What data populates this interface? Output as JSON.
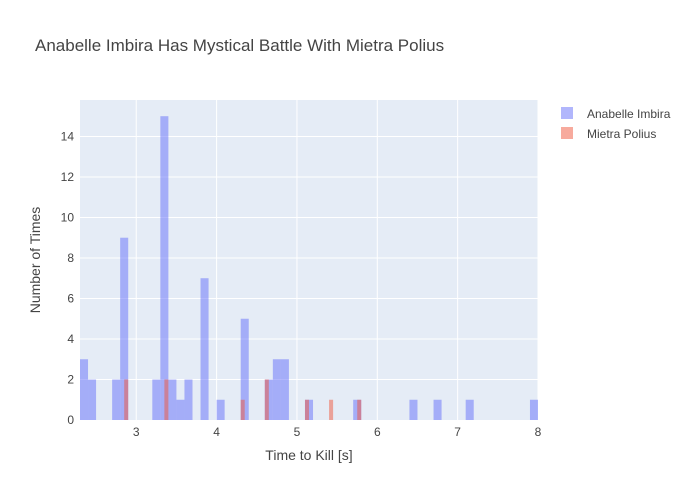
{
  "colors": {
    "plot_bg": "#e5ecf6",
    "grid": "#ffffff",
    "series_1": "#636efa",
    "series_2": "#ef553b"
  },
  "chart_data": {
    "type": "bar",
    "chart_kind": "overlaid-histogram",
    "title": "Anabelle Imbira Has Mystical Battle With Mietra Polius",
    "xlabel": "Time to Kill [s]",
    "ylabel": "Number of Times",
    "xlim": [
      2.3,
      8.0
    ],
    "ylim": [
      0,
      15.8
    ],
    "x_ticks": [
      3,
      4,
      5,
      6,
      7,
      8
    ],
    "y_ticks": [
      0,
      2,
      4,
      6,
      8,
      10,
      12,
      14
    ],
    "bin_width": 0.1,
    "grid": true,
    "legend_position": "top-right",
    "opacity": 0.5,
    "series": [
      {
        "name": "Anabelle Imbira",
        "color": "#636efa",
        "bins": [
          {
            "x": 2.35,
            "y": 3
          },
          {
            "x": 2.45,
            "y": 2
          },
          {
            "x": 2.75,
            "y": 2
          },
          {
            "x": 2.85,
            "y": 9
          },
          {
            "x": 3.25,
            "y": 2
          },
          {
            "x": 3.35,
            "y": 15
          },
          {
            "x": 3.45,
            "y": 2
          },
          {
            "x": 3.55,
            "y": 1
          },
          {
            "x": 3.65,
            "y": 2
          },
          {
            "x": 3.85,
            "y": 7
          },
          {
            "x": 4.05,
            "y": 1
          },
          {
            "x": 4.35,
            "y": 5
          },
          {
            "x": 4.65,
            "y": 2
          },
          {
            "x": 4.75,
            "y": 3
          },
          {
            "x": 4.85,
            "y": 3
          },
          {
            "x": 5.15,
            "y": 1
          },
          {
            "x": 5.75,
            "y": 1
          },
          {
            "x": 6.45,
            "y": 1
          },
          {
            "x": 6.75,
            "y": 1
          },
          {
            "x": 7.15,
            "y": 1
          },
          {
            "x": 7.95,
            "y": 1
          }
        ]
      },
      {
        "name": "Mietra Polius",
        "color": "#ef553b",
        "bins": [
          {
            "x": 2.875,
            "y": 2
          },
          {
            "x": 3.375,
            "y": 2
          },
          {
            "x": 4.325,
            "y": 1
          },
          {
            "x": 4.625,
            "y": 2
          },
          {
            "x": 5.125,
            "y": 1
          },
          {
            "x": 5.425,
            "y": 1
          },
          {
            "x": 5.775,
            "y": 1
          }
        ]
      }
    ]
  }
}
